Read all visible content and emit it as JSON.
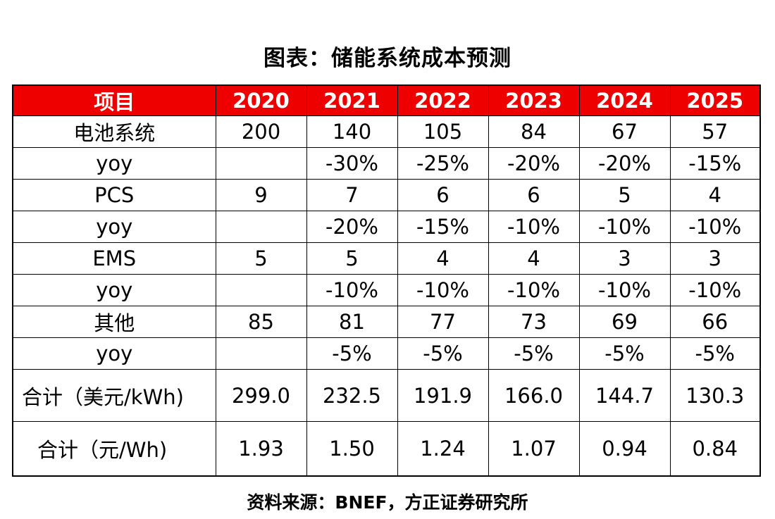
{
  "title": "图表：储能系统成本预测",
  "table": {
    "headers": [
      "项目",
      "2020",
      "2021",
      "2022",
      "2023",
      "2024",
      "2025"
    ],
    "rows": [
      [
        "电池系统",
        "200",
        "140",
        "105",
        "84",
        "67",
        "57"
      ],
      [
        "yoy",
        "",
        "-30%",
        "-25%",
        "-20%",
        "-20%",
        "-15%"
      ],
      [
        "PCS",
        "9",
        "7",
        "6",
        "6",
        "5",
        "4"
      ],
      [
        "yoy",
        "",
        "-20%",
        "-15%",
        "-10%",
        "-10%",
        "-10%"
      ],
      [
        "EMS",
        "5",
        "5",
        "4",
        "4",
        "3",
        "3"
      ],
      [
        "yoy",
        "",
        "-10%",
        "-10%",
        "-10%",
        "-10%",
        "-10%"
      ],
      [
        "其他",
        "85",
        "81",
        "77",
        "73",
        "69",
        "66"
      ],
      [
        "yoy",
        "",
        "-5%",
        "-5%",
        "-5%",
        "-5%",
        "-5%"
      ],
      [
        "合计（美元/kWh)",
        "299.0",
        "232.5",
        "191.9",
        "166.0",
        "144.7",
        "130.3"
      ],
      [
        "合计（元/Wh)",
        "1.93",
        "1.50",
        "1.24",
        "1.07",
        "0.94",
        "0.84"
      ]
    ]
  },
  "source": "资料来源：BNEF，方正证券研究所",
  "colors": {
    "header_bg": "#ee0000",
    "header_text": "#ffffff",
    "border": "#000000"
  }
}
